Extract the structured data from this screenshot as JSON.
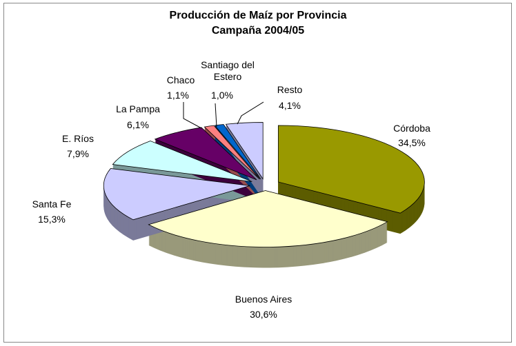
{
  "chart_data": {
    "type": "pie3d",
    "title": "Producción de Maíz por Provincia",
    "subtitle": "Campaña 2004/05",
    "categories": [
      "Córdoba",
      "Buenos Aires",
      "Santa Fe",
      "E. Ríos",
      "La Pampa",
      "Chaco",
      "Santiago del Estero",
      "Resto"
    ],
    "values": [
      34.5,
      30.6,
      15.3,
      7.9,
      6.1,
      1.1,
      1.0,
      4.1
    ],
    "value_labels": [
      "34,5%",
      "30,6%",
      "15,3%",
      "7,9%",
      "6,1%",
      "1,1%",
      "1,0%",
      "4,1%"
    ],
    "colors": [
      "#999900",
      "#FFFFCC",
      "#CCCCFF",
      "#CCFFFF",
      "#660066",
      "#FF8080",
      "#0066CC",
      "#CCCCFF"
    ]
  }
}
